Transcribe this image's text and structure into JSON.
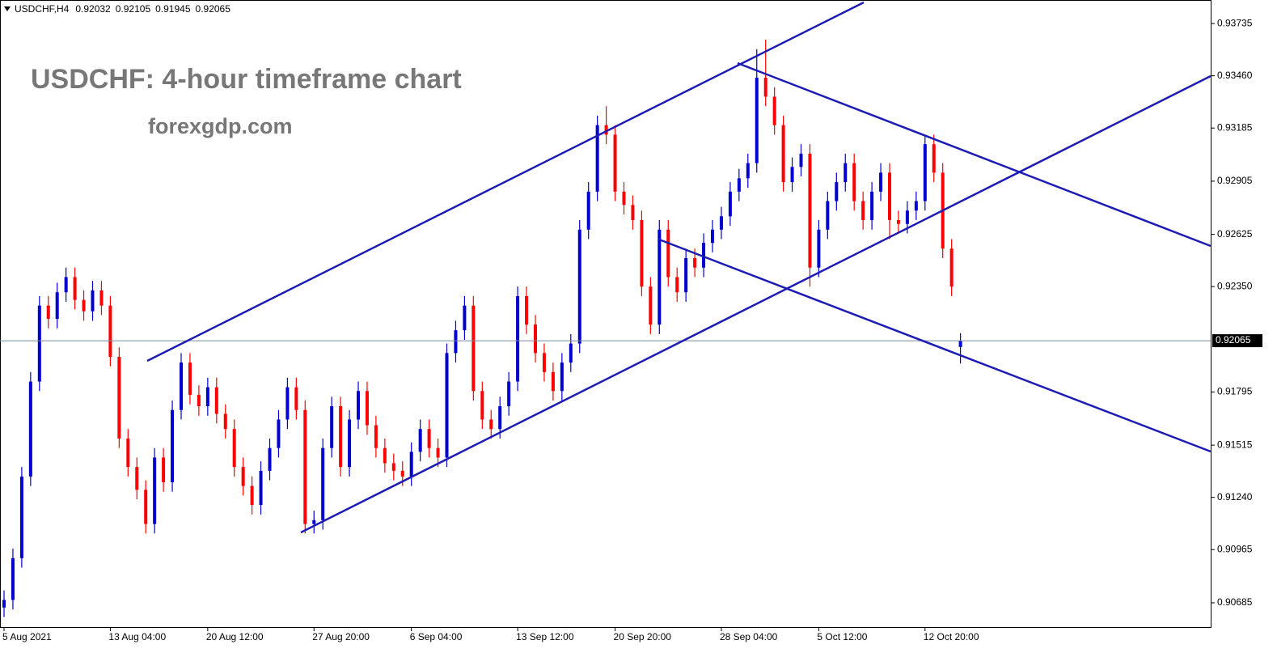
{
  "chart_data": {
    "type": "candlestick",
    "symbol": "USDCHF,H4",
    "title": "USDCHF: 4-hour timeframe chart",
    "subtitle": "forexgdp.com",
    "up_color": "#0000d0",
    "down_color": "#ff0000",
    "categories": [
      "5 Aug 2021",
      null,
      null,
      null,
      null,
      null,
      null,
      null,
      null,
      null,
      null,
      null,
      "13 Aug 04:00",
      null,
      null,
      null,
      null,
      null,
      null,
      null,
      null,
      null,
      null,
      "20 Aug 12:00",
      null,
      null,
      null,
      null,
      null,
      null,
      null,
      null,
      null,
      null,
      null,
      "27 Aug 20:00",
      null,
      null,
      null,
      null,
      null,
      null,
      null,
      null,
      null,
      null,
      "6 Sep 04:00",
      null,
      null,
      null,
      null,
      null,
      null,
      null,
      null,
      null,
      null,
      null,
      "13 Sep 12:00",
      null,
      null,
      null,
      null,
      null,
      null,
      null,
      null,
      null,
      null,
      "20 Sep 20:00",
      null,
      null,
      null,
      null,
      null,
      null,
      null,
      null,
      null,
      null,
      null,
      "28 Sep 04:00",
      null,
      null,
      null,
      null,
      null,
      null,
      null,
      null,
      null,
      null,
      "5 Oct 12:00",
      null,
      null,
      null,
      null,
      null,
      null,
      null,
      null,
      null,
      null,
      null,
      "12 Oct 20:00",
      null,
      null,
      null,
      null
    ],
    "open": [
      0.9066,
      0.907,
      0.9092,
      0.9135,
      0.9185,
      0.9225,
      0.9218,
      0.9232,
      0.924,
      0.9228,
      0.9222,
      0.9233,
      0.9225,
      0.9198,
      0.9155,
      0.914,
      0.9128,
      0.911,
      0.9145,
      0.9132,
      0.917,
      0.9195,
      0.9178,
      0.9172,
      0.9182,
      0.9168,
      0.916,
      0.914,
      0.913,
      0.912,
      0.9138,
      0.915,
      0.9165,
      0.9182,
      0.917,
      0.911,
      0.9112,
      0.915,
      0.9172,
      0.914,
      0.9165,
      0.918,
      0.9162,
      0.915,
      0.9142,
      0.9138,
      0.9135,
      0.9148,
      0.916,
      0.915,
      0.9145,
      0.92,
      0.9212,
      0.9225,
      0.918,
      0.9165,
      0.916,
      0.9172,
      0.9185,
      0.923,
      0.9215,
      0.92,
      0.919,
      0.918,
      0.9195,
      0.9205,
      0.9265,
      0.9285,
      0.932,
      0.9315,
      0.9285,
      0.9278,
      0.927,
      0.9235,
      0.9215,
      0.9265,
      0.924,
      0.9232,
      0.925,
      0.9245,
      0.9258,
      0.9265,
      0.9272,
      0.9285,
      0.9292,
      0.93,
      0.9345,
      0.9335,
      0.932,
      0.929,
      0.9298,
      0.9305,
      0.9245,
      0.9265,
      0.928,
      0.929,
      0.93,
      0.928,
      0.927,
      0.9285,
      0.9295,
      0.927,
      0.9268,
      0.9275,
      0.928,
      0.931,
      0.9295,
      0.9255,
      0.92032
    ],
    "high": [
      0.9075,
      0.9097,
      0.914,
      0.919,
      0.923,
      0.923,
      0.9237,
      0.9245,
      0.9245,
      0.9233,
      0.9238,
      0.9238,
      0.923,
      0.9203,
      0.916,
      0.9145,
      0.9133,
      0.915,
      0.915,
      0.9175,
      0.92,
      0.92,
      0.9183,
      0.9187,
      0.9187,
      0.9173,
      0.9165,
      0.9145,
      0.9135,
      0.9143,
      0.9155,
      0.917,
      0.9187,
      0.9187,
      0.9175,
      0.9117,
      0.9155,
      0.9177,
      0.9177,
      0.917,
      0.9185,
      0.9185,
      0.9167,
      0.9155,
      0.9147,
      0.9143,
      0.9153,
      0.9165,
      0.9165,
      0.9155,
      0.9205,
      0.9217,
      0.923,
      0.923,
      0.9185,
      0.917,
      0.9177,
      0.919,
      0.9235,
      0.9235,
      0.922,
      0.9205,
      0.9195,
      0.92,
      0.921,
      0.927,
      0.929,
      0.9325,
      0.933,
      0.932,
      0.929,
      0.9283,
      0.9275,
      0.924,
      0.927,
      0.927,
      0.9245,
      0.9255,
      0.9255,
      0.9263,
      0.927,
      0.9277,
      0.929,
      0.9297,
      0.9305,
      0.936,
      0.9365,
      0.934,
      0.9325,
      0.9303,
      0.931,
      0.931,
      0.927,
      0.9285,
      0.9295,
      0.9305,
      0.9305,
      0.9285,
      0.929,
      0.93,
      0.93,
      0.9275,
      0.928,
      0.9285,
      0.9315,
      0.9315,
      0.93,
      0.926,
      0.92105
    ],
    "low": [
      0.9061,
      0.9065,
      0.9087,
      0.913,
      0.918,
      0.9213,
      0.9213,
      0.9227,
      0.9223,
      0.9217,
      0.9217,
      0.922,
      0.9193,
      0.915,
      0.9135,
      0.9123,
      0.9105,
      0.9105,
      0.9127,
      0.9127,
      0.9165,
      0.9173,
      0.9167,
      0.9167,
      0.9163,
      0.9155,
      0.9135,
      0.9125,
      0.9115,
      0.9115,
      0.9133,
      0.9145,
      0.916,
      0.9165,
      0.9105,
      0.9105,
      0.9107,
      0.9145,
      0.9135,
      0.9135,
      0.916,
      0.9157,
      0.9145,
      0.9137,
      0.9133,
      0.913,
      0.913,
      0.9143,
      0.9145,
      0.914,
      0.914,
      0.9195,
      0.9207,
      0.9175,
      0.916,
      0.9155,
      0.9155,
      0.9167,
      0.918,
      0.921,
      0.9195,
      0.9185,
      0.9175,
      0.9175,
      0.919,
      0.92,
      0.926,
      0.928,
      0.931,
      0.928,
      0.9273,
      0.9265,
      0.923,
      0.921,
      0.921,
      0.9235,
      0.9227,
      0.9227,
      0.924,
      0.924,
      0.9253,
      0.926,
      0.9267,
      0.928,
      0.9287,
      0.9295,
      0.933,
      0.9315,
      0.9285,
      0.9285,
      0.9293,
      0.9235,
      0.924,
      0.926,
      0.9275,
      0.9285,
      0.9275,
      0.9265,
      0.9265,
      0.928,
      0.926,
      0.9263,
      0.9263,
      0.927,
      0.9275,
      0.929,
      0.925,
      0.923,
      0.91945
    ],
    "close": [
      0.907,
      0.9092,
      0.9135,
      0.9185,
      0.9225,
      0.9218,
      0.9232,
      0.924,
      0.9228,
      0.9222,
      0.9233,
      0.9225,
      0.9198,
      0.9155,
      0.914,
      0.9128,
      0.911,
      0.9145,
      0.9132,
      0.917,
      0.9195,
      0.9178,
      0.9172,
      0.9182,
      0.9168,
      0.916,
      0.914,
      0.913,
      0.912,
      0.9138,
      0.915,
      0.9165,
      0.9182,
      0.917,
      0.911,
      0.9112,
      0.915,
      0.9172,
      0.914,
      0.9165,
      0.918,
      0.9162,
      0.915,
      0.9142,
      0.9138,
      0.9135,
      0.9148,
      0.916,
      0.915,
      0.9145,
      0.92,
      0.9212,
      0.9225,
      0.918,
      0.9165,
      0.916,
      0.9172,
      0.9185,
      0.923,
      0.9215,
      0.92,
      0.919,
      0.918,
      0.9195,
      0.9205,
      0.9265,
      0.9285,
      0.932,
      0.9315,
      0.9285,
      0.9278,
      0.927,
      0.9235,
      0.9215,
      0.9265,
      0.924,
      0.9232,
      0.925,
      0.9245,
      0.9258,
      0.9265,
      0.9272,
      0.9285,
      0.9292,
      0.93,
      0.9345,
      0.9335,
      0.932,
      0.929,
      0.9298,
      0.9305,
      0.9245,
      0.9265,
      0.928,
      0.929,
      0.93,
      0.928,
      0.927,
      0.9285,
      0.9295,
      0.927,
      0.9268,
      0.9275,
      0.928,
      0.931,
      0.9295,
      0.9255,
      0.9235,
      0.92065
    ],
    "ylim": [
      0.90557,
      0.93859
    ],
    "yticks": [
      0.93735,
      {
        "value": 0.9346,
        "label": "0.93460"
      },
      0.93185,
      0.92905,
      0.92625,
      {
        "value": 0.9235,
        "label": "0.92350"
      },
      0.91795,
      0.91515,
      {
        "value": 0.9124,
        "label": "0.91240"
      },
      0.90965,
      0.90685
    ]
  }
}
